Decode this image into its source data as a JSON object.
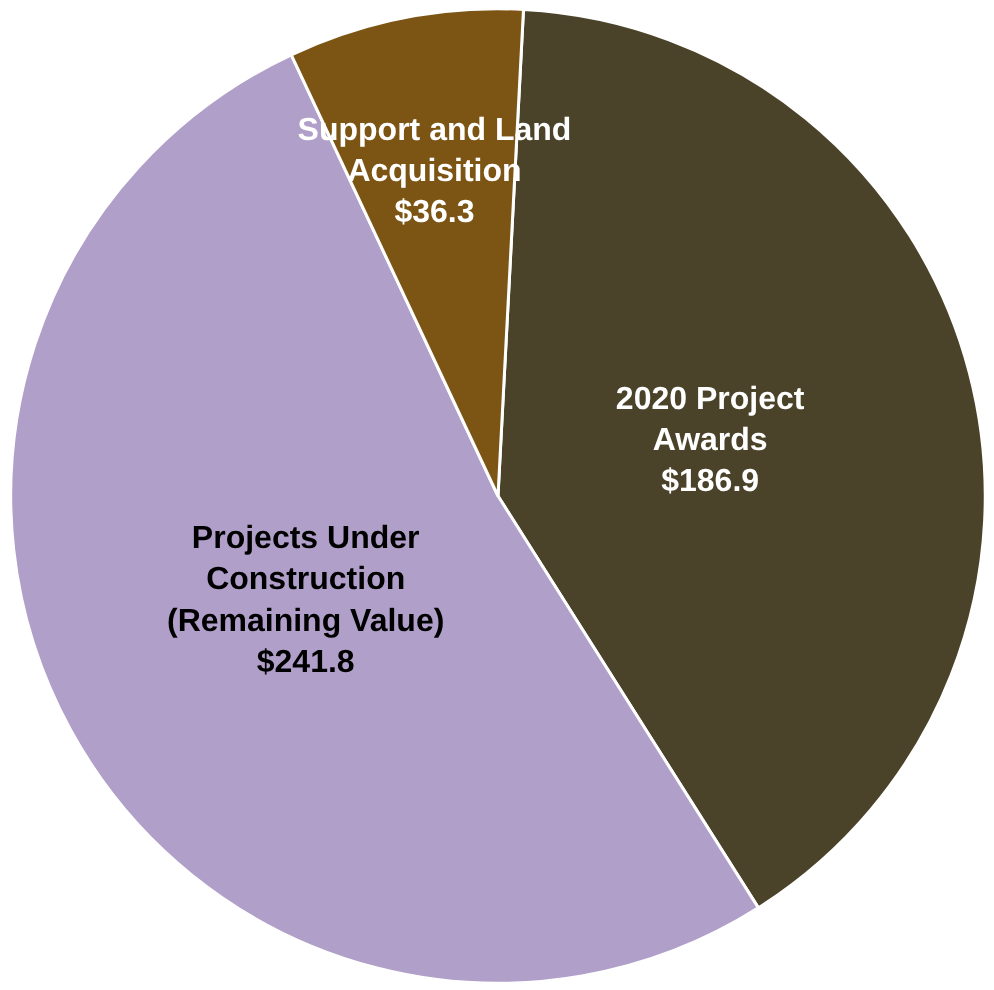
{
  "chart_data": {
    "type": "pie",
    "categories": [
      "2020 Project Awards",
      "Projects Under Construction (Remaining Value)",
      "Support and Land Acquisition"
    ],
    "values": [
      186.9,
      241.8,
      36.3
    ],
    "colors": [
      "#4a4329",
      "#b09fc8",
      "#7c5514"
    ],
    "value_labels": [
      "$186.9",
      "$241.8",
      "$36.3"
    ],
    "legend": false
  }
}
